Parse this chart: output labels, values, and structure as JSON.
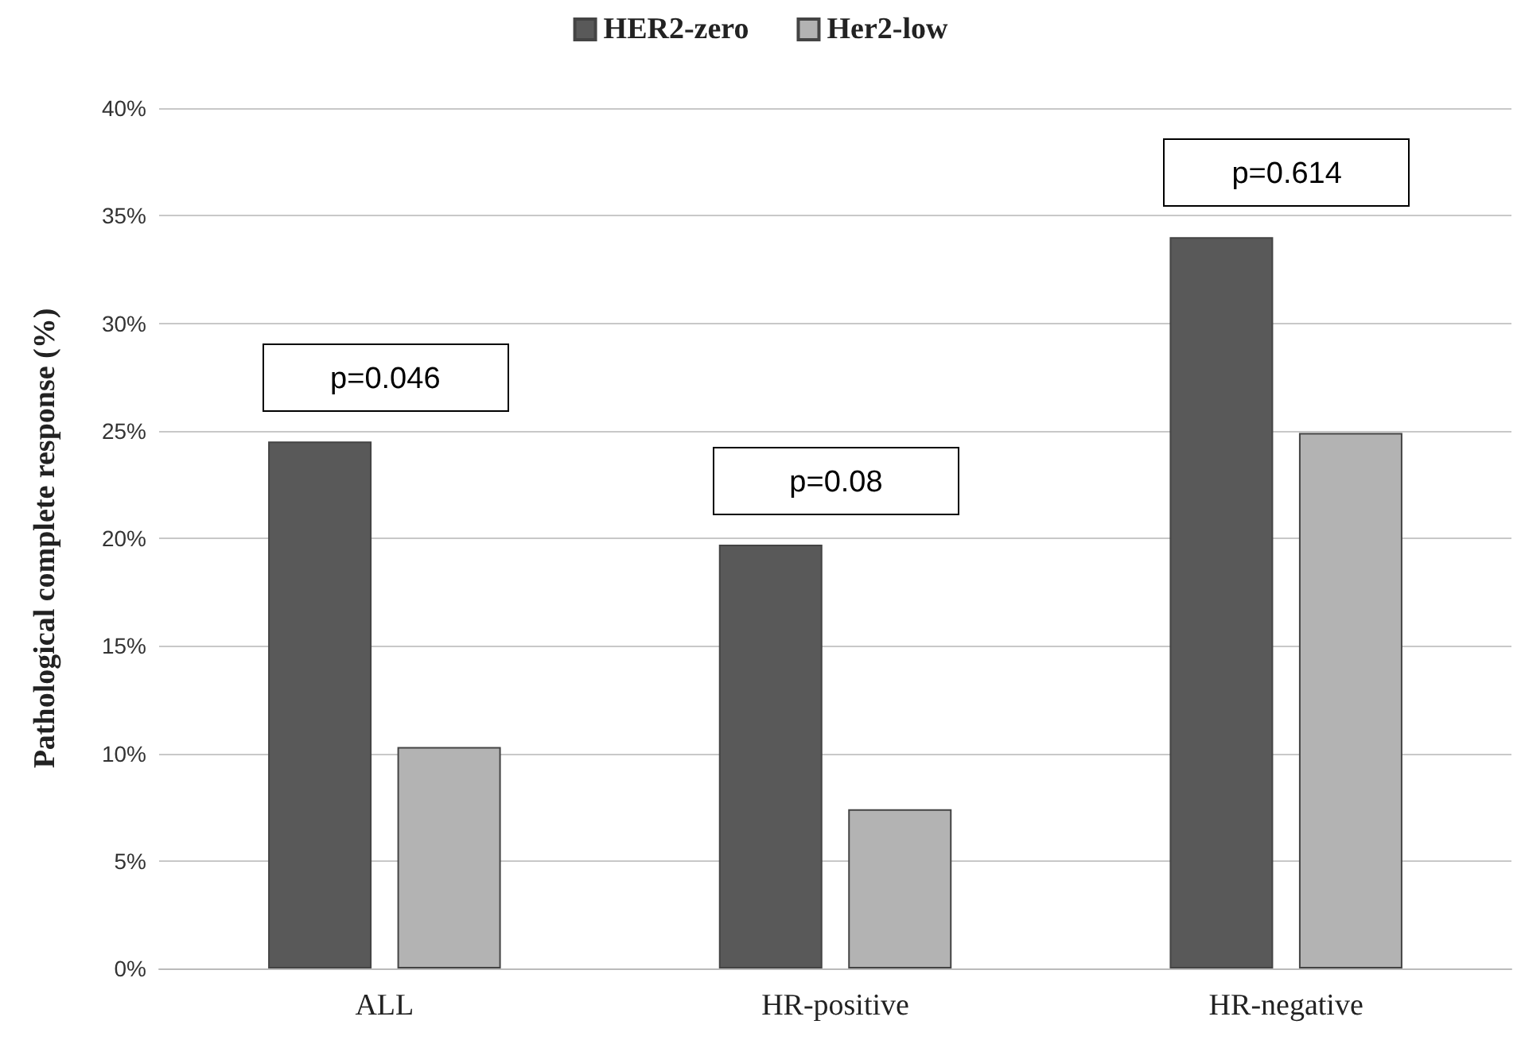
{
  "chart_data": {
    "type": "bar",
    "ylabel": "Pathological complete response (%)",
    "categories": [
      "ALL",
      "HR-positive",
      "HR-negative"
    ],
    "series": [
      {
        "name": "HER2-zero",
        "color": "#595959",
        "values": [
          24.5,
          19.7,
          34.0
        ]
      },
      {
        "name": "Her2-low",
        "color": "#b3b3b3",
        "values": [
          10.3,
          7.4,
          24.9
        ]
      }
    ],
    "ylim": [
      0,
      40
    ],
    "yticks": [
      {
        "value": 0,
        "label": "0%"
      },
      {
        "value": 5,
        "label": "5%"
      },
      {
        "value": 10,
        "label": "10%"
      },
      {
        "value": 15,
        "label": "15%"
      },
      {
        "value": 20,
        "label": "20%"
      },
      {
        "value": 25,
        "label": "25%"
      },
      {
        "value": 30,
        "label": "30%"
      },
      {
        "value": 35,
        "label": "35%"
      },
      {
        "value": 40,
        "label": "40%"
      }
    ],
    "annotations": [
      "p=0.046",
      "p=0.08",
      "p=0.614"
    ],
    "grid": "y",
    "legend": "top"
  }
}
